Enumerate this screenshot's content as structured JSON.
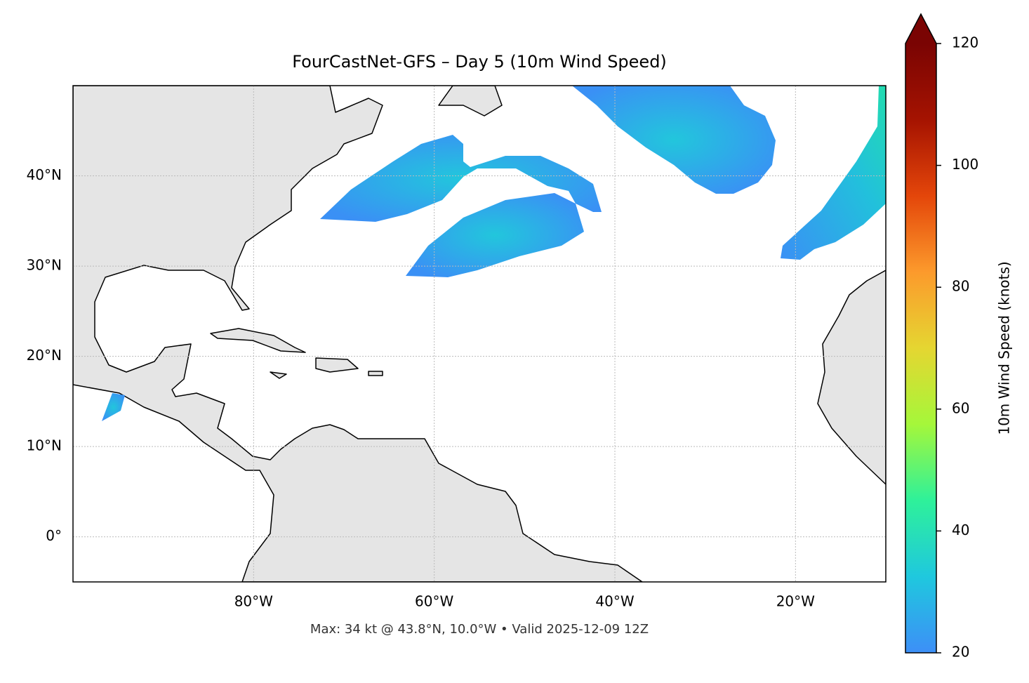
{
  "chart_data": {
    "type": "map",
    "title": "FourCastNet-GFS – Day 5 (10m Wind Speed)",
    "xlim": [
      -100,
      -10
    ],
    "ylim": [
      -5,
      50
    ],
    "xticks": [
      {
        "value": -80,
        "label": "80°W"
      },
      {
        "value": -60,
        "label": "60°W"
      },
      {
        "value": -40,
        "label": "40°W"
      },
      {
        "value": -20,
        "label": "20°W"
      }
    ],
    "yticks": [
      {
        "value": 0,
        "label": "0°"
      },
      {
        "value": 10,
        "label": "10°N"
      },
      {
        "value": 20,
        "label": "20°N"
      },
      {
        "value": 30,
        "label": "30°N"
      },
      {
        "value": 40,
        "label": "40°N"
      }
    ],
    "grid": true,
    "colorbar": {
      "label": "10m Wind Speed (knots)",
      "lim": [
        20,
        120
      ],
      "ticks": [
        20,
        40,
        60,
        80,
        100,
        120
      ],
      "colormap": [
        "#3d8ff7",
        "#1fc8de",
        "#2ef19a",
        "#a5f73a",
        "#e5d631",
        "#fc9a2c",
        "#e4460a",
        "#a51301",
        "#7a0403"
      ]
    },
    "annotation": "Max: 34 kt @ 43.8°N, 10.0°W • Valid 2025-12-09 12Z"
  }
}
